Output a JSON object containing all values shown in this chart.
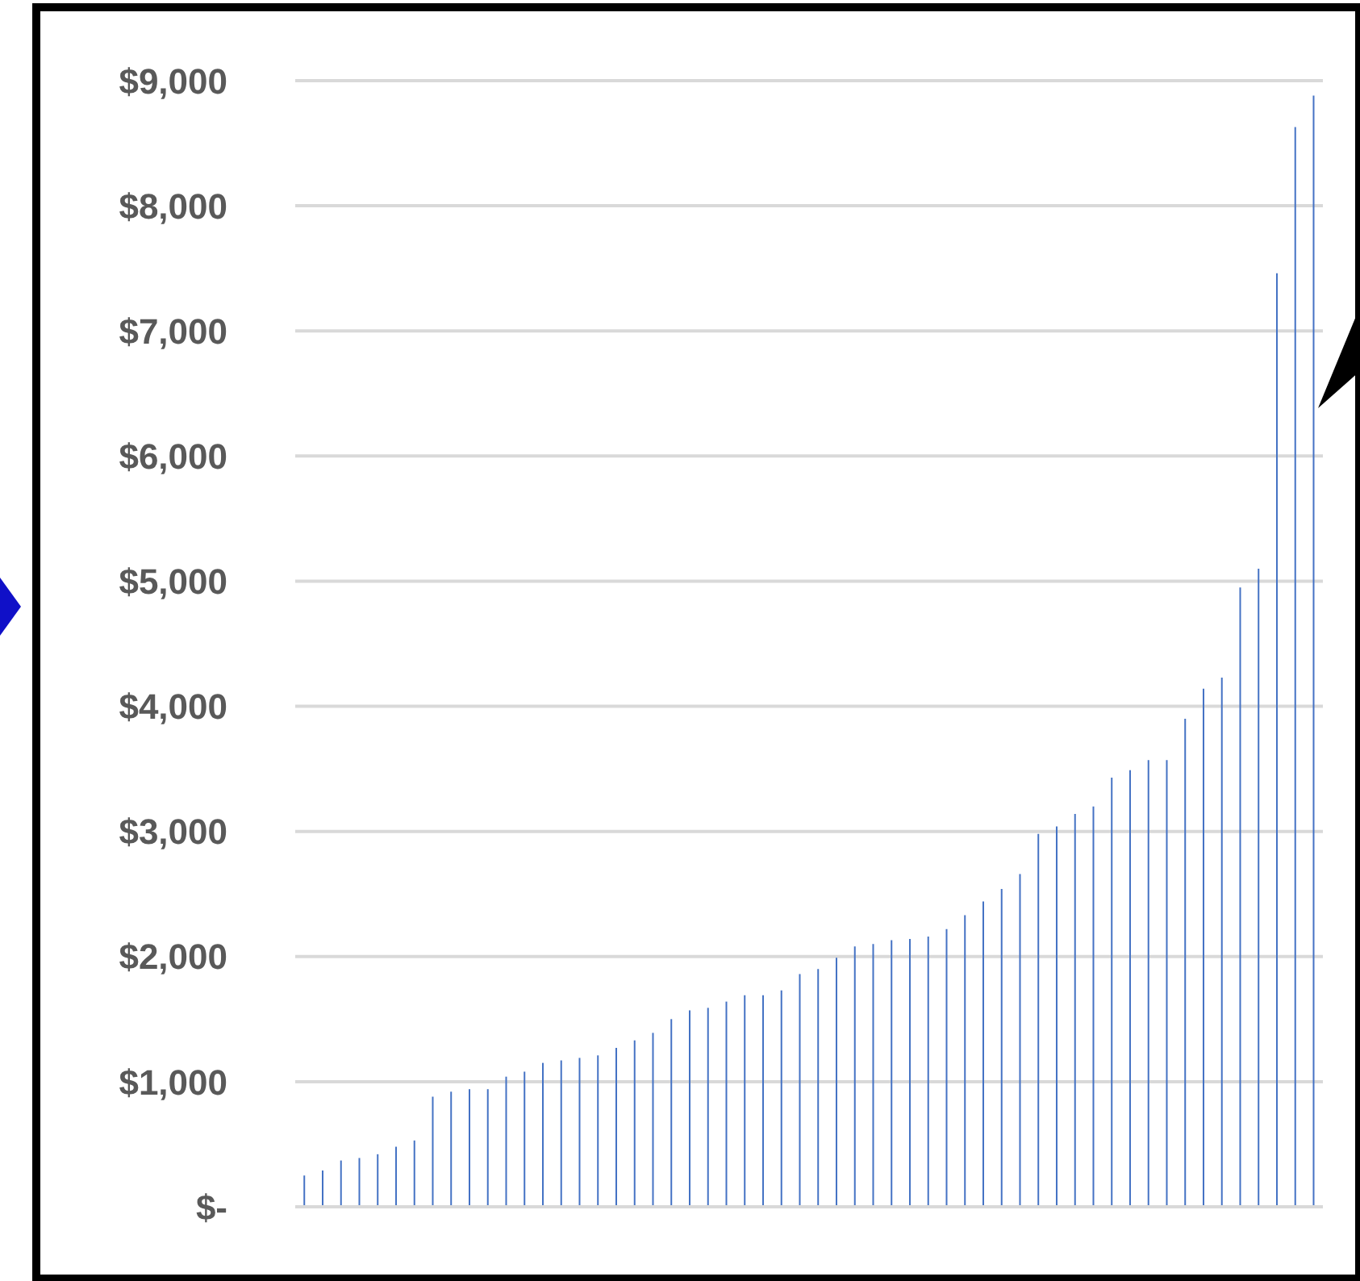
{
  "chart_data": {
    "type": "bar",
    "categories": [
      null,
      null,
      null,
      null,
      null,
      null,
      null,
      null,
      null,
      null,
      null,
      null,
      null,
      null,
      null,
      null,
      null,
      null,
      null,
      null,
      null,
      null,
      null,
      null,
      null,
      null,
      null,
      null,
      null,
      null,
      null,
      null,
      null,
      null,
      null,
      null,
      null,
      null,
      null,
      null,
      null,
      null,
      null,
      null,
      null,
      null,
      null,
      null,
      null,
      null,
      null,
      null,
      null,
      null,
      null,
      null
    ],
    "values": [
      250,
      290,
      370,
      390,
      420,
      480,
      530,
      880,
      920,
      940,
      940,
      1040,
      1080,
      1150,
      1170,
      1190,
      1210,
      1270,
      1330,
      1390,
      1500,
      1570,
      1590,
      1640,
      1690,
      1690,
      1730,
      1860,
      1900,
      1990,
      2080,
      2100,
      2130,
      2140,
      2160,
      2220,
      2330,
      2440,
      2540,
      2660,
      2980,
      3040,
      3140,
      3200,
      3430,
      3490,
      3570,
      3570,
      3900,
      4140,
      4230,
      4950,
      5100,
      7460,
      8630,
      8880
    ],
    "color": "#4472c4",
    "ylim": [
      0,
      9000
    ],
    "yticks": [
      {
        "value": 0,
        "label": "$-"
      },
      {
        "value": 1000,
        "label": "$1,000"
      },
      {
        "value": 2000,
        "label": "$2,000"
      },
      {
        "value": 3000,
        "label": "$3,000"
      },
      {
        "value": 4000,
        "label": "$4,000"
      },
      {
        "value": 5000,
        "label": "$5,000"
      },
      {
        "value": 6000,
        "label": "$6,000"
      },
      {
        "value": 7000,
        "label": "$7,000"
      },
      {
        "value": 8000,
        "label": "$8,000"
      },
      {
        "value": 9000,
        "label": "$9,000"
      }
    ],
    "grid": "y",
    "tick_labels": "y"
  }
}
